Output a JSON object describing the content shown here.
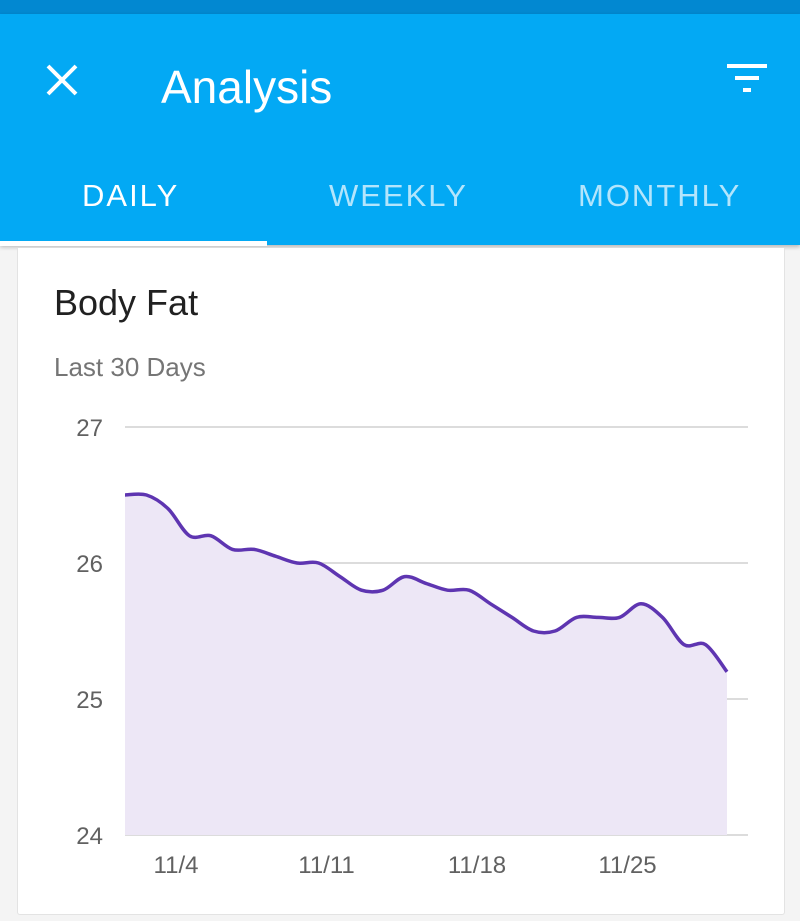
{
  "app_bar": {
    "title": "Analysis",
    "close_icon": "close-icon",
    "filter_icon": "filter-icon"
  },
  "tabs": [
    {
      "label": "DAILY",
      "active": true
    },
    {
      "label": "WEEKLY",
      "active": false
    },
    {
      "label": "MONTHLY",
      "active": false
    }
  ],
  "card": {
    "title": "Body Fat",
    "subtitle": "Last 30 Days"
  },
  "colors": {
    "app_bar": "#03A9F4",
    "status_bar": "#0288D1",
    "line": "#5E35B1",
    "fill": "#EDE7F6"
  },
  "chart_data": {
    "type": "area",
    "title": "Body Fat",
    "subtitle": "Last 30 Days",
    "xlabel": "",
    "ylabel": "",
    "ylim": [
      24,
      27
    ],
    "yticks": [
      "24",
      "25",
      "26",
      "27"
    ],
    "x": [
      "11/2",
      "11/3",
      "11/4",
      "11/5",
      "11/6",
      "11/7",
      "11/8",
      "11/9",
      "11/10",
      "11/11",
      "11/12",
      "11/13",
      "11/14",
      "11/15",
      "11/16",
      "11/17",
      "11/18",
      "11/19",
      "11/20",
      "11/21",
      "11/22",
      "11/23",
      "11/24",
      "11/25",
      "11/26",
      "11/27",
      "11/28",
      "11/29",
      "11/30"
    ],
    "xticks": [
      "11/4",
      "11/11",
      "11/18",
      "11/25"
    ],
    "values": [
      26.5,
      26.5,
      26.4,
      26.2,
      26.2,
      26.1,
      26.1,
      26.05,
      26.0,
      26.0,
      25.9,
      25.8,
      25.8,
      25.9,
      25.85,
      25.8,
      25.8,
      25.7,
      25.6,
      25.5,
      25.5,
      25.6,
      25.6,
      25.6,
      25.7,
      25.6,
      25.4,
      25.4,
      25.2
    ],
    "grid": true
  }
}
